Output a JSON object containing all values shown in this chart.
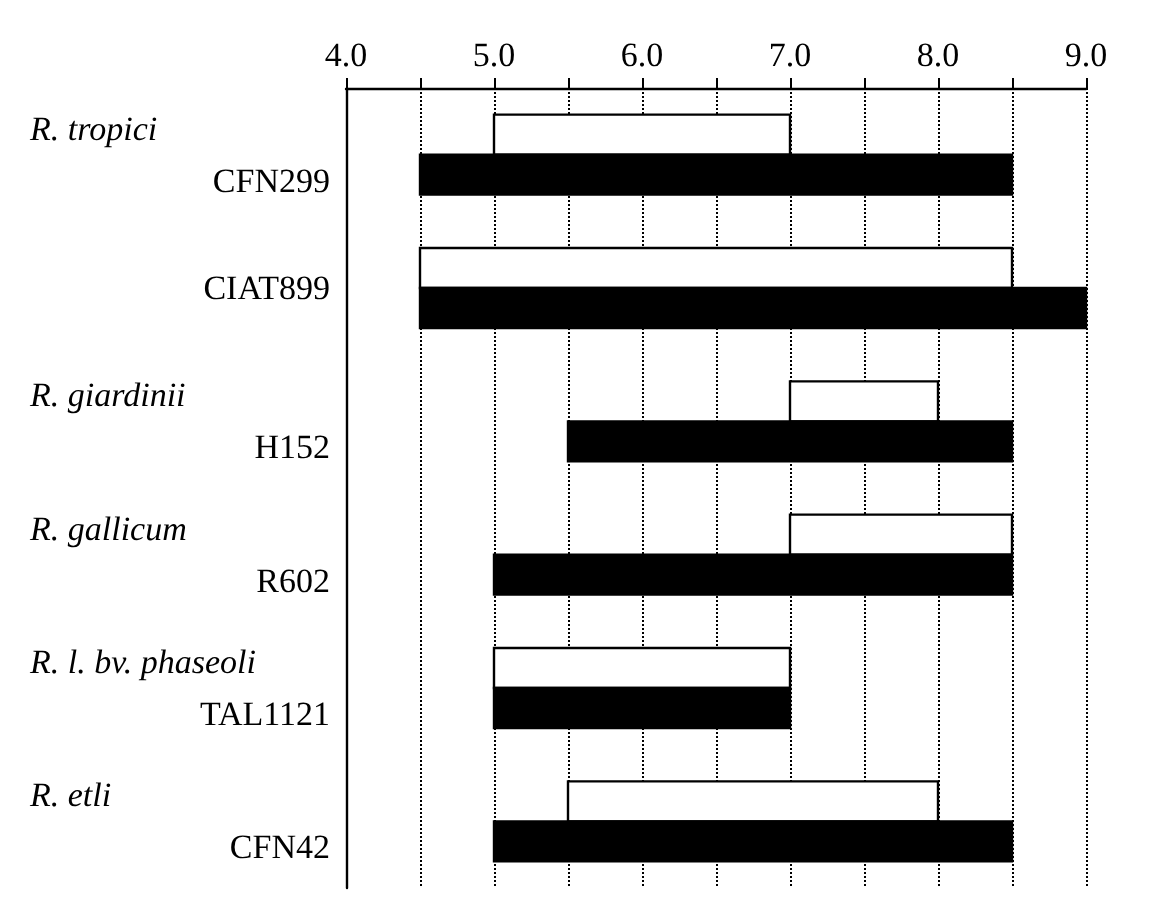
{
  "chart_data": {
    "type": "bar",
    "orientation": "horizontal",
    "categories": [
      "R. tropici\nCFN299",
      "CIAT899",
      "R. giardinii\nH152",
      "R. gallicum\nR602",
      "R. l. bv. phaseoli\nTAL1121",
      "R. etli\nCFN42"
    ],
    "series": [
      {
        "color": "#ffffff",
        "base": [
          5.0,
          4.5,
          7.0,
          7.0,
          5.0,
          5.5
        ],
        "values": [
          2.0,
          4.0,
          1.0,
          1.5,
          2.0,
          2.5
        ]
      },
      {
        "color": "#000000",
        "base": [
          4.5,
          4.5,
          5.5,
          5.0,
          5.0,
          5.0
        ],
        "values": [
          4.0,
          4.5,
          3.0,
          3.5,
          2.0,
          3.5
        ]
      }
    ],
    "xlim": [
      4,
      9
    ],
    "xticks": [
      {
        "value": 4,
        "label": "4.0"
      },
      {
        "value": 4.5,
        "label": null
      },
      {
        "value": 5,
        "label": "5.0"
      },
      {
        "value": 5.5,
        "label": null
      },
      {
        "value": 6,
        "label": "6.0"
      },
      {
        "value": 6.5,
        "label": null
      },
      {
        "value": 7,
        "label": "7.0"
      },
      {
        "value": 7.5,
        "label": null
      },
      {
        "value": 8,
        "label": "8.0"
      },
      {
        "value": 8.5,
        "label": null
      },
      {
        "value": 9,
        "label": "9.0"
      }
    ],
    "grid": "x"
  }
}
